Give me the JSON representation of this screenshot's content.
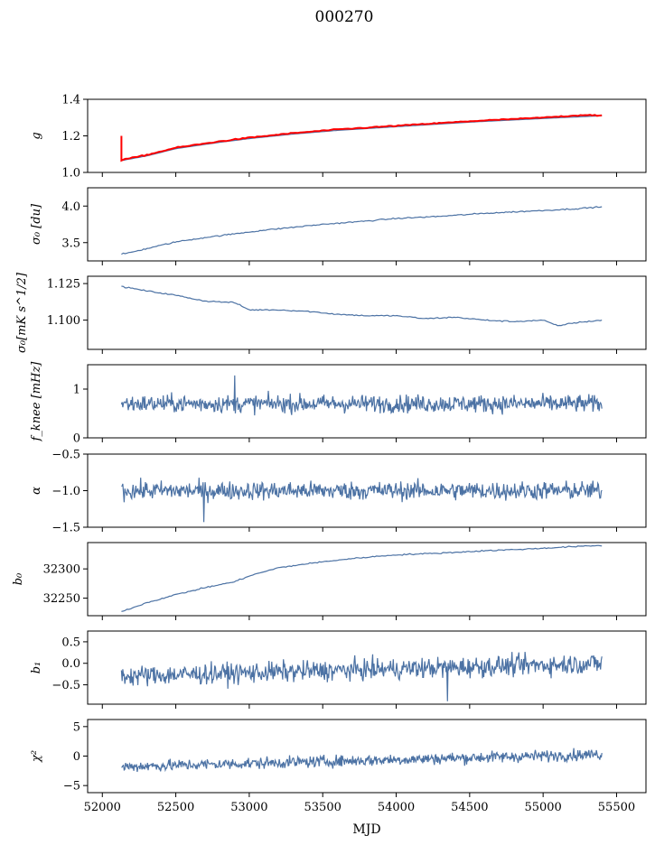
{
  "figure_title": "000270",
  "xlabel": "MJD",
  "chart_data": [
    {
      "type": "line",
      "name": "g",
      "ylabel": "g",
      "xlim": [
        51900,
        55700
      ],
      "ylim": [
        1.0,
        1.4
      ],
      "xticks": [
        52000,
        52500,
        53000,
        53500,
        54000,
        54500,
        55000,
        55500
      ],
      "yticks": [
        1.0,
        1.2,
        1.4
      ],
      "ytick_labels": [
        "1.0",
        "1.2",
        "1.4"
      ],
      "series": [
        {
          "name": "g-fit",
          "color": "#4c72a4",
          "x": [
            52130,
            52300,
            52500,
            52800,
            53000,
            53300,
            53600,
            54000,
            54500,
            55000,
            55400
          ],
          "y": [
            1.065,
            1.09,
            1.13,
            1.165,
            1.185,
            1.21,
            1.23,
            1.25,
            1.275,
            1.295,
            1.31
          ]
        },
        {
          "name": "g-data",
          "color": "#ff0000",
          "x": [
            52130,
            52130,
            52140,
            52300,
            52500,
            52800,
            53000,
            53300,
            53600,
            54000,
            54500,
            55000,
            55300,
            55400
          ],
          "y": [
            1.2,
            1.065,
            1.07,
            1.095,
            1.135,
            1.17,
            1.19,
            1.215,
            1.235,
            1.255,
            1.28,
            1.3,
            1.315,
            1.31
          ]
        }
      ]
    },
    {
      "type": "line",
      "name": "sigma0-du",
      "ylabel": "σ₀ [du]",
      "xlim": [
        51900,
        55700
      ],
      "ylim": [
        3.25,
        4.25
      ],
      "xticks": [
        52000,
        52500,
        53000,
        53500,
        54000,
        54500,
        55000,
        55500
      ],
      "yticks": [
        3.5,
        4.0
      ],
      "ytick_labels": [
        "3.5",
        "4.0"
      ],
      "series": [
        {
          "name": "sigma0",
          "color": "#4c72a4",
          "x": [
            52130,
            52200,
            52350,
            52500,
            52700,
            52900,
            53100,
            53300,
            53500,
            53700,
            54000,
            54300,
            54600,
            54900,
            55200,
            55400
          ],
          "y": [
            3.34,
            3.37,
            3.44,
            3.51,
            3.57,
            3.62,
            3.67,
            3.71,
            3.75,
            3.78,
            3.83,
            3.86,
            3.9,
            3.93,
            3.96,
            3.99
          ]
        }
      ]
    },
    {
      "type": "line",
      "name": "sigma0-mK",
      "ylabel": "σ₀[mK s^1/2]",
      "xlim": [
        51900,
        55700
      ],
      "ylim": [
        1.08,
        1.13
      ],
      "xticks": [
        52000,
        52500,
        53000,
        53500,
        54000,
        54500,
        55000,
        55500
      ],
      "yticks": [
        1.1,
        1.125
      ],
      "ytick_labels": [
        "1.100",
        "1.125"
      ],
      "series": [
        {
          "name": "sigma0-temp",
          "color": "#4c72a4",
          "x": [
            52130,
            52300,
            52500,
            52700,
            52900,
            53000,
            53200,
            53400,
            53600,
            53800,
            54000,
            54200,
            54400,
            54600,
            54800,
            55000,
            55100,
            55200,
            55400
          ],
          "y": [
            1.123,
            1.12,
            1.117,
            1.113,
            1.112,
            1.107,
            1.107,
            1.106,
            1.104,
            1.103,
            1.103,
            1.101,
            1.102,
            1.1,
            1.099,
            1.1,
            1.096,
            1.098,
            1.1
          ]
        }
      ]
    },
    {
      "type": "line",
      "name": "fknee",
      "ylabel": "f_knee [mHz]",
      "xlim": [
        51900,
        55700
      ],
      "ylim": [
        0,
        1.5
      ],
      "xticks": [
        52000,
        52500,
        53000,
        53500,
        54000,
        54500,
        55000,
        55500
      ],
      "yticks": [
        0,
        1
      ],
      "ytick_labels": [
        "0",
        "1"
      ],
      "series": [
        {
          "name": "fknee",
          "color": "#4c72a4",
          "x_start": 52130,
          "x_end": 55400,
          "mean": 0.7,
          "noise": 0.13,
          "spike": {
            "x": 52900,
            "y": 1.28
          }
        }
      ]
    },
    {
      "type": "line",
      "name": "alpha",
      "ylabel": "α",
      "xlim": [
        51900,
        55700
      ],
      "ylim": [
        -1.5,
        -0.5
      ],
      "xticks": [
        52000,
        52500,
        53000,
        53500,
        54000,
        54500,
        55000,
        55500
      ],
      "yticks": [
        -1.5,
        -1.0,
        -0.5
      ],
      "ytick_labels": [
        "−1.5",
        "−1.0",
        "−0.5"
      ],
      "series": [
        {
          "name": "alpha",
          "color": "#4c72a4",
          "x_start": 52130,
          "x_end": 55400,
          "mean": -1.0,
          "noise": 0.09,
          "spike": {
            "x": 52690,
            "y": -1.43
          }
        }
      ]
    },
    {
      "type": "line",
      "name": "b0",
      "ylabel": "b₀",
      "xlim": [
        51900,
        55700
      ],
      "ylim": [
        32220,
        32345
      ],
      "xticks": [
        52000,
        52500,
        53000,
        53500,
        54000,
        54500,
        55000,
        55500
      ],
      "yticks": [
        32250,
        32300
      ],
      "ytick_labels": [
        "32250",
        "32300"
      ],
      "series": [
        {
          "name": "b0",
          "color": "#4c72a4",
          "x": [
            52130,
            52300,
            52500,
            52700,
            52900,
            53000,
            53200,
            53400,
            53600,
            53800,
            54000,
            54300,
            54600,
            54900,
            55200,
            55400
          ],
          "y": [
            32227,
            32242,
            32256,
            32268,
            32278,
            32288,
            32302,
            32309,
            32315,
            32320,
            32324,
            32327,
            32331,
            32334,
            32338,
            32340
          ]
        }
      ]
    },
    {
      "type": "line",
      "name": "b1",
      "ylabel": "b₁",
      "xlim": [
        51900,
        55700
      ],
      "ylim": [
        -0.95,
        0.75
      ],
      "xticks": [
        52000,
        52500,
        53000,
        53500,
        54000,
        54500,
        55000,
        55500
      ],
      "yticks": [
        -0.5,
        0.0,
        0.5
      ],
      "ytick_labels": [
        "−0.5",
        "0.0",
        "0.5"
      ],
      "series": [
        {
          "name": "b1",
          "color": "#4c72a4",
          "x_start": 52130,
          "x_end": 55400,
          "mean_start": -0.3,
          "mean_end": 0.0,
          "noise": 0.17,
          "spike": {
            "x": 54350,
            "y": -0.88
          }
        }
      ]
    },
    {
      "type": "line",
      "name": "chi2",
      "ylabel": "χ²",
      "xlim": [
        51900,
        55700
      ],
      "ylim": [
        -6.2,
        6.2
      ],
      "xticks": [
        52000,
        52500,
        53000,
        53500,
        54000,
        54500,
        55000,
        55500
      ],
      "xtick_labels": [
        "52000",
        "52500",
        "53000",
        "53500",
        "54000",
        "54500",
        "55000",
        "55500"
      ],
      "yticks": [
        -5,
        0,
        5
      ],
      "ytick_labels": [
        "−5",
        "0",
        "5"
      ],
      "series": [
        {
          "name": "chi2",
          "color": "#4c72a4",
          "x_start": 52130,
          "x_end": 55400,
          "mean_start": -1.8,
          "mean_end": 0.3,
          "noise": 0.7
        }
      ]
    }
  ]
}
